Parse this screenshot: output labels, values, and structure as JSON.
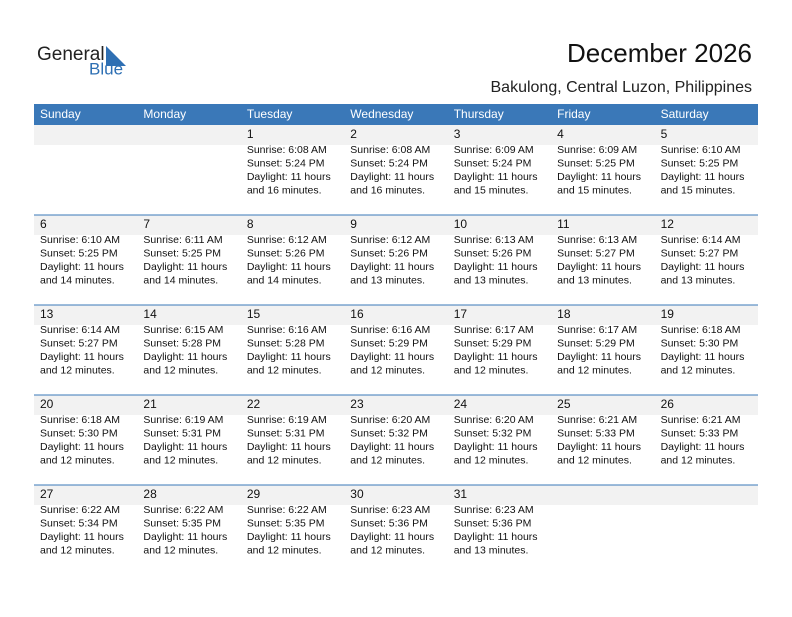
{
  "header": {
    "logo_general": "General",
    "logo_blue": "Blue",
    "title": "December 2026",
    "subtitle": "Bakulong, Central Luzon, Philippines"
  },
  "weekdays": [
    "Sunday",
    "Monday",
    "Tuesday",
    "Wednesday",
    "Thursday",
    "Friday",
    "Saturday"
  ],
  "weeks": [
    [
      null,
      null,
      {
        "day": 1,
        "lines": [
          "Sunrise: 6:08 AM",
          "Sunset: 5:24 PM",
          "Daylight: 11 hours",
          "and 16 minutes."
        ]
      },
      {
        "day": 2,
        "lines": [
          "Sunrise: 6:08 AM",
          "Sunset: 5:24 PM",
          "Daylight: 11 hours",
          "and 16 minutes."
        ]
      },
      {
        "day": 3,
        "lines": [
          "Sunrise: 6:09 AM",
          "Sunset: 5:24 PM",
          "Daylight: 11 hours",
          "and 15 minutes."
        ]
      },
      {
        "day": 4,
        "lines": [
          "Sunrise: 6:09 AM",
          "Sunset: 5:25 PM",
          "Daylight: 11 hours",
          "and 15 minutes."
        ]
      },
      {
        "day": 5,
        "lines": [
          "Sunrise: 6:10 AM",
          "Sunset: 5:25 PM",
          "Daylight: 11 hours",
          "and 15 minutes."
        ]
      }
    ],
    [
      {
        "day": 6,
        "lines": [
          "Sunrise: 6:10 AM",
          "Sunset: 5:25 PM",
          "Daylight: 11 hours",
          "and 14 minutes."
        ]
      },
      {
        "day": 7,
        "lines": [
          "Sunrise: 6:11 AM",
          "Sunset: 5:25 PM",
          "Daylight: 11 hours",
          "and 14 minutes."
        ]
      },
      {
        "day": 8,
        "lines": [
          "Sunrise: 6:12 AM",
          "Sunset: 5:26 PM",
          "Daylight: 11 hours",
          "and 14 minutes."
        ]
      },
      {
        "day": 9,
        "lines": [
          "Sunrise: 6:12 AM",
          "Sunset: 5:26 PM",
          "Daylight: 11 hours",
          "and 13 minutes."
        ]
      },
      {
        "day": 10,
        "lines": [
          "Sunrise: 6:13 AM",
          "Sunset: 5:26 PM",
          "Daylight: 11 hours",
          "and 13 minutes."
        ]
      },
      {
        "day": 11,
        "lines": [
          "Sunrise: 6:13 AM",
          "Sunset: 5:27 PM",
          "Daylight: 11 hours",
          "and 13 minutes."
        ]
      },
      {
        "day": 12,
        "lines": [
          "Sunrise: 6:14 AM",
          "Sunset: 5:27 PM",
          "Daylight: 11 hours",
          "and 13 minutes."
        ]
      }
    ],
    [
      {
        "day": 13,
        "lines": [
          "Sunrise: 6:14 AM",
          "Sunset: 5:27 PM",
          "Daylight: 11 hours",
          "and 12 minutes."
        ]
      },
      {
        "day": 14,
        "lines": [
          "Sunrise: 6:15 AM",
          "Sunset: 5:28 PM",
          "Daylight: 11 hours",
          "and 12 minutes."
        ]
      },
      {
        "day": 15,
        "lines": [
          "Sunrise: 6:16 AM",
          "Sunset: 5:28 PM",
          "Daylight: 11 hours",
          "and 12 minutes."
        ]
      },
      {
        "day": 16,
        "lines": [
          "Sunrise: 6:16 AM",
          "Sunset: 5:29 PM",
          "Daylight: 11 hours",
          "and 12 minutes."
        ]
      },
      {
        "day": 17,
        "lines": [
          "Sunrise: 6:17 AM",
          "Sunset: 5:29 PM",
          "Daylight: 11 hours",
          "and 12 minutes."
        ]
      },
      {
        "day": 18,
        "lines": [
          "Sunrise: 6:17 AM",
          "Sunset: 5:29 PM",
          "Daylight: 11 hours",
          "and 12 minutes."
        ]
      },
      {
        "day": 19,
        "lines": [
          "Sunrise: 6:18 AM",
          "Sunset: 5:30 PM",
          "Daylight: 11 hours",
          "and 12 minutes."
        ]
      }
    ],
    [
      {
        "day": 20,
        "lines": [
          "Sunrise: 6:18 AM",
          "Sunset: 5:30 PM",
          "Daylight: 11 hours",
          "and 12 minutes."
        ]
      },
      {
        "day": 21,
        "lines": [
          "Sunrise: 6:19 AM",
          "Sunset: 5:31 PM",
          "Daylight: 11 hours",
          "and 12 minutes."
        ]
      },
      {
        "day": 22,
        "lines": [
          "Sunrise: 6:19 AM",
          "Sunset: 5:31 PM",
          "Daylight: 11 hours",
          "and 12 minutes."
        ]
      },
      {
        "day": 23,
        "lines": [
          "Sunrise: 6:20 AM",
          "Sunset: 5:32 PM",
          "Daylight: 11 hours",
          "and 12 minutes."
        ]
      },
      {
        "day": 24,
        "lines": [
          "Sunrise: 6:20 AM",
          "Sunset: 5:32 PM",
          "Daylight: 11 hours",
          "and 12 minutes."
        ]
      },
      {
        "day": 25,
        "lines": [
          "Sunrise: 6:21 AM",
          "Sunset: 5:33 PM",
          "Daylight: 11 hours",
          "and 12 minutes."
        ]
      },
      {
        "day": 26,
        "lines": [
          "Sunrise: 6:21 AM",
          "Sunset: 5:33 PM",
          "Daylight: 11 hours",
          "and 12 minutes."
        ]
      }
    ],
    [
      {
        "day": 27,
        "lines": [
          "Sunrise: 6:22 AM",
          "Sunset: 5:34 PM",
          "Daylight: 11 hours",
          "and 12 minutes."
        ]
      },
      {
        "day": 28,
        "lines": [
          "Sunrise: 6:22 AM",
          "Sunset: 5:35 PM",
          "Daylight: 11 hours",
          "and 12 minutes."
        ]
      },
      {
        "day": 29,
        "lines": [
          "Sunrise: 6:22 AM",
          "Sunset: 5:35 PM",
          "Daylight: 11 hours",
          "and 12 minutes."
        ]
      },
      {
        "day": 30,
        "lines": [
          "Sunrise: 6:23 AM",
          "Sunset: 5:36 PM",
          "Daylight: 11 hours",
          "and 12 minutes."
        ]
      },
      {
        "day": 31,
        "lines": [
          "Sunrise: 6:23 AM",
          "Sunset: 5:36 PM",
          "Daylight: 11 hours",
          "and 13 minutes."
        ]
      },
      null,
      null
    ]
  ]
}
